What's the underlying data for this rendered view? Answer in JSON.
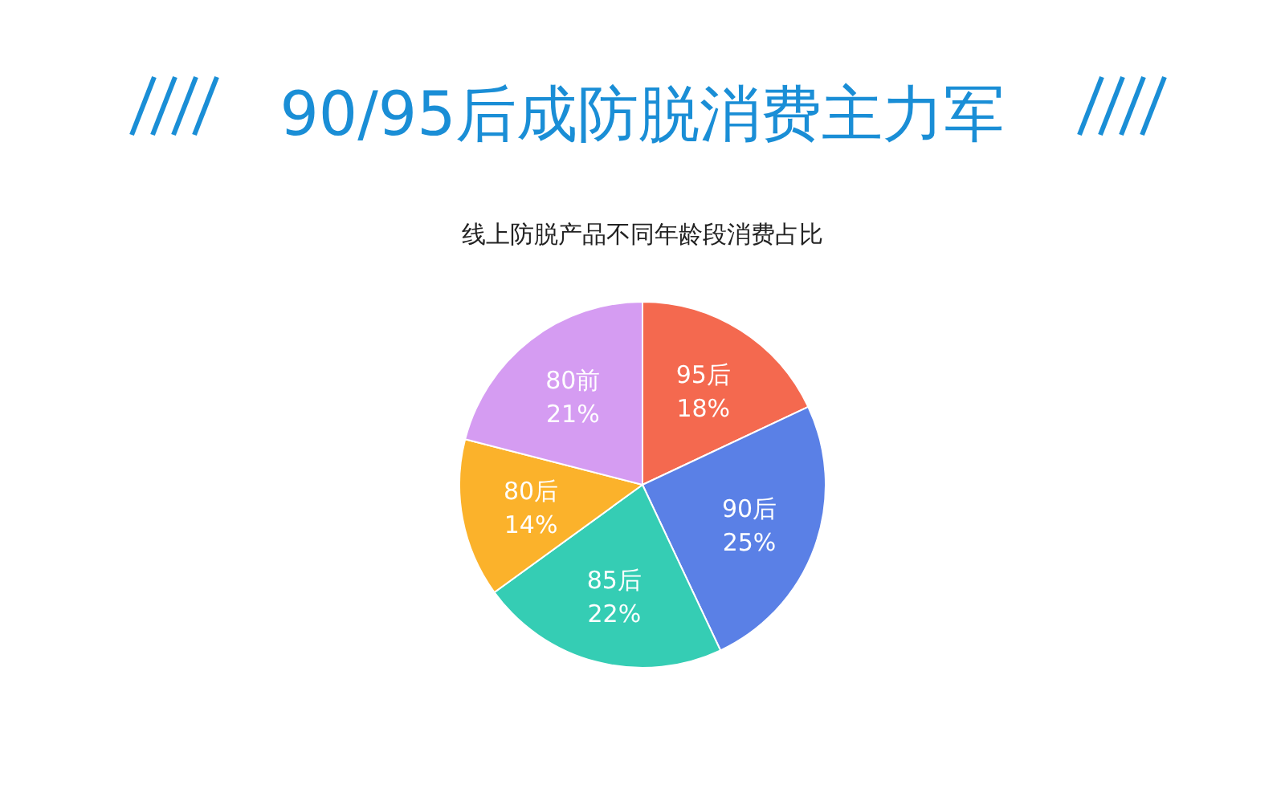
{
  "chart_data": {
    "type": "pie",
    "title": "90/95后成防脱消费主力军",
    "subtitle": "线上防脱产品不同年龄段消费占比",
    "categories": [
      "95后",
      "90后",
      "85后",
      "80后",
      "80前"
    ],
    "values": [
      18,
      25,
      22,
      14,
      21
    ],
    "value_labels": [
      "18%",
      "25%",
      "22%",
      "14%",
      "21%"
    ],
    "colors": [
      "#f4694f",
      "#5a80e6",
      "#35cdb4",
      "#fbb22b",
      "#d59cf2"
    ]
  }
}
